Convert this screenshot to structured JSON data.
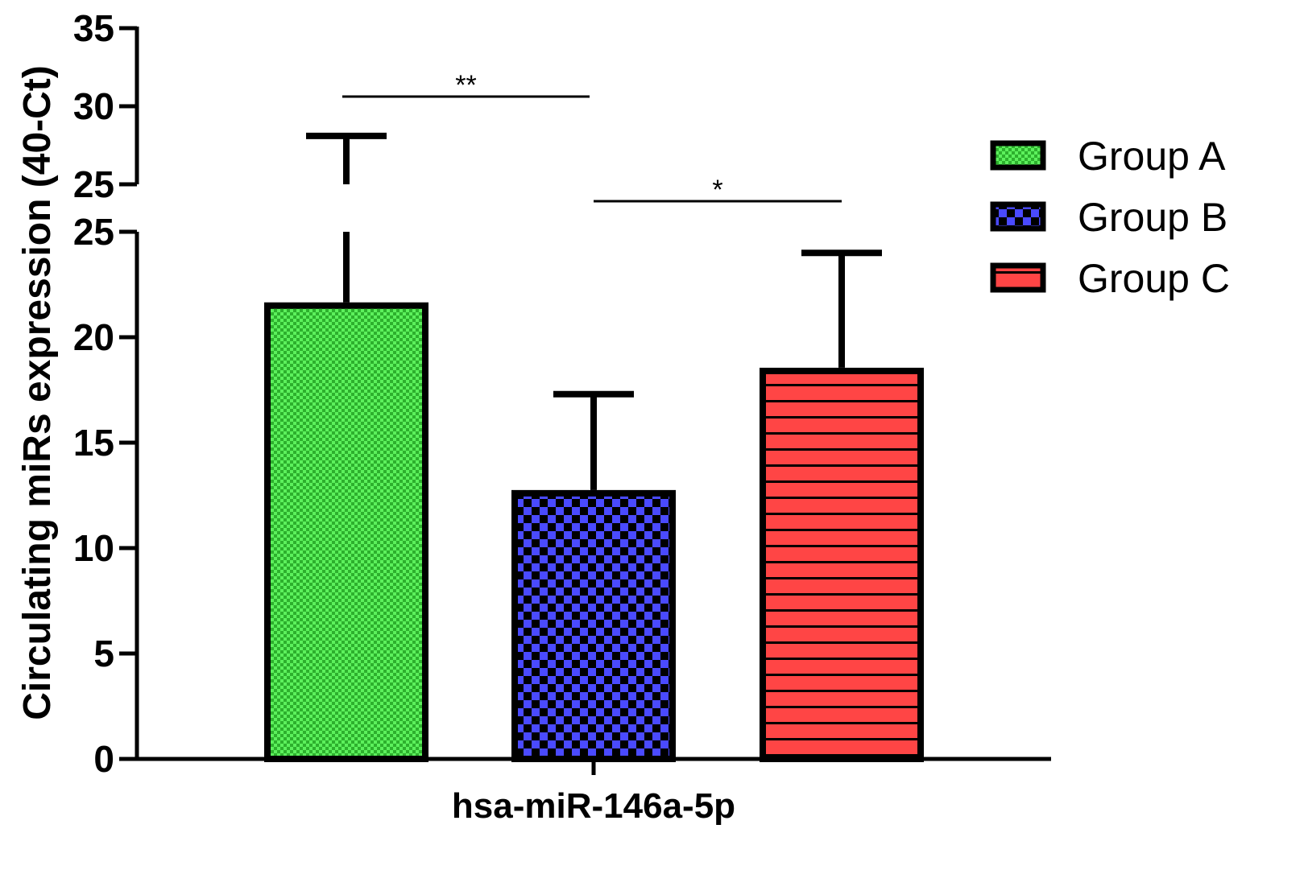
{
  "chart_data": {
    "type": "bar",
    "ylabel": "Circulating miRs expression (40-Ct)",
    "xlabel": "hsa-miR-146a-5p",
    "categories": [
      "hsa-miR-146a-5p"
    ],
    "series": [
      {
        "name": "Group A",
        "value": 21.5,
        "error": 28.1,
        "color": "#3dd63d",
        "pattern": "fine-checker"
      },
      {
        "name": "Group B",
        "value": 12.6,
        "error": 17.3,
        "color": "#4040ff",
        "pattern": "checker"
      },
      {
        "name": "Group C",
        "value": 18.4,
        "error": 24.0,
        "color": "#ff4040",
        "pattern": "horizontal-stripes"
      }
    ],
    "y_axis": {
      "broken": true,
      "lower_segment": {
        "range": [
          0,
          25
        ],
        "ticks": [
          "0",
          "5",
          "10",
          "15",
          "20",
          "25"
        ]
      },
      "upper_segment": {
        "range": [
          25,
          35
        ],
        "ticks": [
          "25",
          "30",
          "35"
        ]
      }
    },
    "significance": [
      {
        "between": [
          "Group A",
          "Group B"
        ],
        "label": "**"
      },
      {
        "between": [
          "Group B",
          "Group C"
        ],
        "label": "*"
      }
    ],
    "legend": {
      "placement": "right"
    }
  }
}
